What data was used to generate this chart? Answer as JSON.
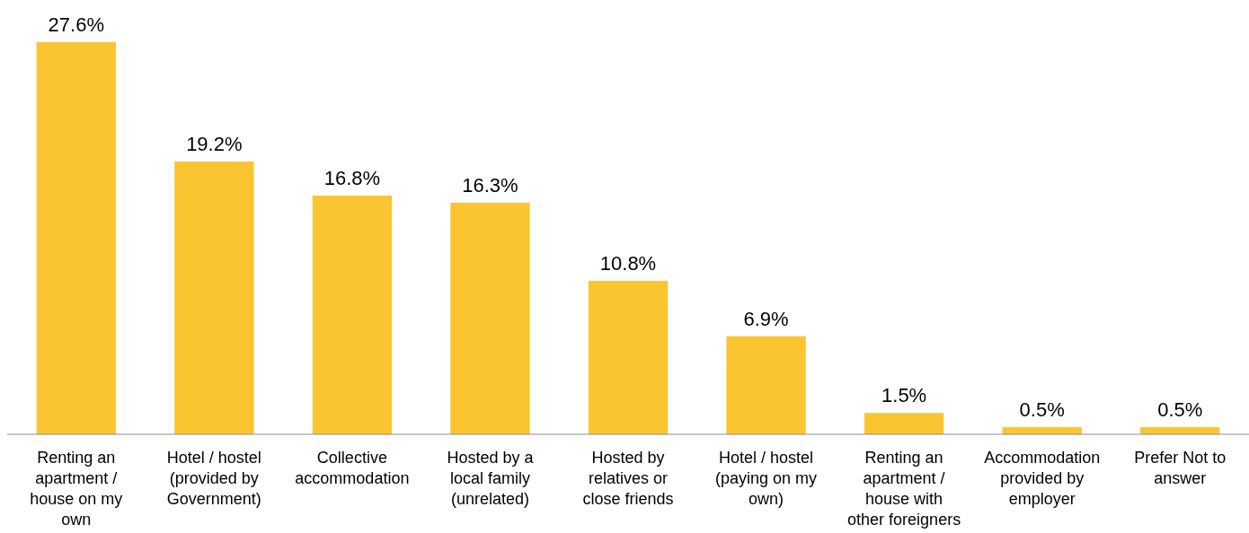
{
  "chart_data": {
    "type": "bar",
    "categories": [
      "Renting an apartment / house on my own",
      "Hotel / hostel (provided by Government)",
      "Collective accommodation",
      "Hosted by a local family (unrelated)",
      "Hosted by relatives or close friends",
      "Hotel / hostel (paying on my own)",
      "Renting an apartment / house with other foreigners",
      "Accommodation provided by employer",
      "Prefer Not to answer"
    ],
    "values": [
      27.6,
      19.2,
      16.8,
      16.3,
      10.8,
      6.9,
      1.5,
      0.5,
      0.5
    ],
    "value_labels": [
      "27.6%",
      "19.2%",
      "16.8%",
      "16.3%",
      "10.8%",
      "6.9%",
      "1.5%",
      "0.5%",
      "0.5%"
    ],
    "color": "#fbc531"
  }
}
